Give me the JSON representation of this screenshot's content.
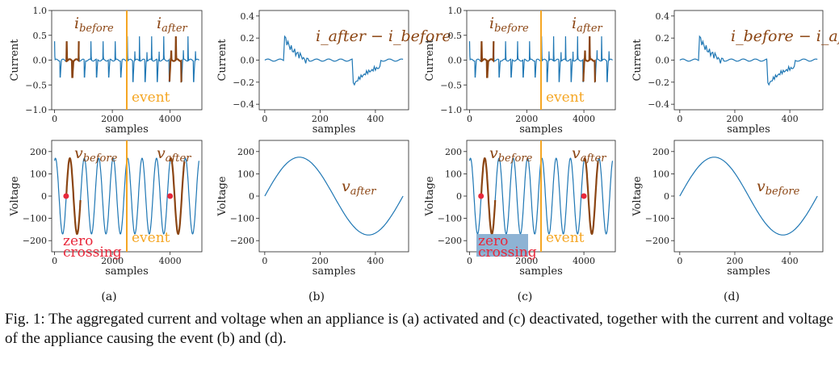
{
  "chart_data": [
    {
      "id": "a-top",
      "type": "line",
      "xlabel": "samples",
      "ylabel": "Current",
      "xlim": [
        -100,
        5100
      ],
      "ylim": [
        -1.0,
        1.0
      ],
      "xticks": [
        0,
        2000,
        4000
      ],
      "yticks": [
        -1.0,
        -0.5,
        0.0,
        0.5,
        1.0
      ],
      "yticklabels": [
        "−1.0",
        "−0.5",
        "0.0",
        "0.5",
        "1.0"
      ],
      "event_x": 2500,
      "event_label": "event",
      "signal": {
        "kind": "current",
        "before_period": 420,
        "before_amp": 0.38,
        "after_period": 420,
        "after_amp": 0.48,
        "samples": 5000
      },
      "highlight": [
        [
          380,
          840
        ],
        [
          3980,
          4400
        ]
      ],
      "annotations": [
        {
          "text": "i",
          "sub": "before"
        },
        {
          "text": "i",
          "sub": "after"
        }
      ]
    },
    {
      "id": "b-top",
      "type": "line",
      "xlabel": "samples",
      "ylabel": "Current",
      "xlim": [
        -20,
        520
      ],
      "ylim": [
        -0.45,
        0.45
      ],
      "xticks": [
        0,
        200,
        400
      ],
      "yticks": [
        -0.4,
        -0.2,
        0.0,
        0.2,
        0.4
      ],
      "yticklabels": [
        "−0.4",
        "−0.2",
        "0.0",
        "0.2",
        "0.4"
      ],
      "signal": {
        "kind": "diff",
        "sign": 1
      },
      "annotation": "i_after − i_before"
    },
    {
      "id": "c-top",
      "type": "line",
      "xlabel": "samples",
      "ylabel": "Current",
      "xlim": [
        -100,
        5100
      ],
      "ylim": [
        -1.0,
        1.0
      ],
      "xticks": [
        0,
        2000,
        4000
      ],
      "yticks": [
        -1.0,
        -0.5,
        0.0,
        0.5,
        1.0
      ],
      "yticklabels": [
        "−1.0",
        "−0.5",
        "0.0",
        "0.5",
        "1.0"
      ],
      "event_x": 2500,
      "event_label": "event",
      "signal": {
        "kind": "current",
        "before_period": 420,
        "before_amp": 0.38,
        "after_period": 420,
        "after_amp": 0.48,
        "samples": 5000
      },
      "highlight": [
        [
          380,
          840
        ],
        [
          3980,
          4400
        ]
      ],
      "annotations": [
        {
          "text": "i",
          "sub": "before"
        },
        {
          "text": "i",
          "sub": "after"
        }
      ]
    },
    {
      "id": "d-top",
      "type": "line",
      "xlabel": "samples",
      "ylabel": "Current",
      "xlim": [
        -20,
        520
      ],
      "ylim": [
        -0.45,
        0.45
      ],
      "xticks": [
        0,
        200,
        400
      ],
      "yticks": [
        -0.4,
        -0.2,
        0.0,
        0.2,
        0.4
      ],
      "yticklabels": [
        "−0.4",
        "−0.2",
        "0.0",
        "0.2",
        "0.4"
      ],
      "signal": {
        "kind": "diff",
        "sign": 1
      },
      "annotation": "i_before − i_after"
    },
    {
      "id": "a-bot",
      "type": "line",
      "xlabel": "samples",
      "ylabel": "Voltage",
      "xlim": [
        -100,
        5100
      ],
      "ylim": [
        -250,
        250
      ],
      "xticks": [
        0,
        2000,
        4000
      ],
      "yticks": [
        -200,
        -100,
        0,
        100,
        200
      ],
      "yticklabels": [
        "−200",
        "−100",
        "0",
        "100",
        "200"
      ],
      "event_x": 2500,
      "event_label": "event",
      "signal": {
        "kind": "voltage",
        "period": 500,
        "amp": 170,
        "samples": 5000
      },
      "highlight": [
        [
          400,
          900
        ],
        [
          4000,
          4500
        ]
      ],
      "zero_crossings": [
        400,
        4000
      ],
      "zero_label": [
        "zero",
        "crossing"
      ],
      "annotations": [
        {
          "text": "v",
          "sub": "before"
        },
        {
          "text": "v",
          "sub": "after"
        }
      ]
    },
    {
      "id": "b-bot",
      "type": "line",
      "xlabel": "samples",
      "ylabel": "Voltage",
      "xlim": [
        -20,
        520
      ],
      "ylim": [
        -250,
        250
      ],
      "xticks": [
        0,
        200,
        400
      ],
      "yticks": [
        -200,
        -100,
        0,
        100,
        200
      ],
      "yticklabels": [
        "−200",
        "−100",
        "0",
        "100",
        "200"
      ],
      "signal": {
        "kind": "sine",
        "period": 500,
        "amp": 175
      },
      "annotation": {
        "text": "v",
        "sub": "after"
      }
    },
    {
      "id": "c-bot",
      "type": "line",
      "xlabel": "samples",
      "ylabel": "Voltage",
      "xlim": [
        -100,
        5100
      ],
      "ylim": [
        -250,
        250
      ],
      "xticks": [
        0,
        2000,
        4000
      ],
      "yticks": [
        -200,
        -100,
        0,
        100,
        200
      ],
      "yticklabels": [
        "−200",
        "−100",
        "0",
        "100",
        "200"
      ],
      "event_x": 2500,
      "event_label": "event",
      "signal": {
        "kind": "voltage",
        "period": 500,
        "amp": 170,
        "samples": 5000
      },
      "highlight": [
        [
          400,
          900
        ],
        [
          4000,
          4500
        ]
      ],
      "zero_crossings": [
        400,
        4000
      ],
      "zero_label": [
        "zero",
        "crossing"
      ],
      "zero_label_boxed": true,
      "annotations": [
        {
          "text": "v",
          "sub": "before"
        },
        {
          "text": "v",
          "sub": "after"
        }
      ]
    },
    {
      "id": "d-bot",
      "type": "line",
      "xlabel": "samples",
      "ylabel": "Voltage",
      "xlim": [
        -20,
        520
      ],
      "ylim": [
        -250,
        250
      ],
      "xticks": [
        0,
        200,
        400
      ],
      "yticks": [
        -200,
        -100,
        0,
        100,
        200
      ],
      "yticklabels": [
        "−200",
        "−100",
        "0",
        "100",
        "200"
      ],
      "signal": {
        "kind": "sine",
        "period": 500,
        "amp": 175
      },
      "annotation": {
        "text": "v",
        "sub": "before"
      }
    }
  ],
  "panel_labels": [
    "(a)",
    "(b)",
    "(c)",
    "(d)"
  ],
  "caption": "Fig. 1: The aggregated current and voltage when an appliance is (a) activated and (c) deactivated, together with the current and voltage of the appliance causing the event (b) and (d).",
  "colors": {
    "line": "#1f77b4",
    "highlight": "#8b4513",
    "event": "#f5a623",
    "zero": "#e8283b",
    "zero_box": "#7aa6cc"
  }
}
